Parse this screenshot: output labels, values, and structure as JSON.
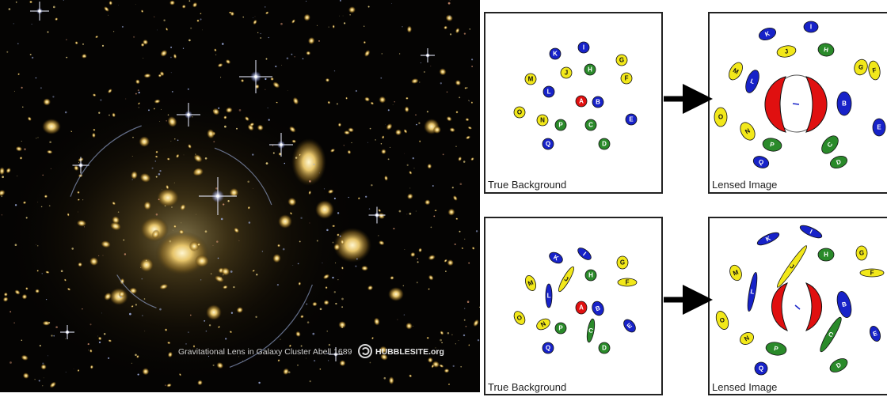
{
  "photo": {
    "caption": "Gravitational Lens in Galaxy Cluster Abell 1689",
    "logo_text": "HUBBLESITE.org",
    "logo_icon": "hubblesite-logo-icon"
  },
  "panels": {
    "top_left_label": "True Background",
    "top_right_label": "Lensed Image",
    "bottom_left_label": "True Background",
    "bottom_right_label": "Lensed Image"
  },
  "colors": {
    "yellow": "#f2e81a",
    "blue": "#1722c8",
    "green": "#2a8a2a",
    "red": "#e01010"
  },
  "sources": [
    {
      "letter": "K",
      "color": "blue"
    },
    {
      "letter": "I",
      "color": "blue"
    },
    {
      "letter": "G",
      "color": "yellow"
    },
    {
      "letter": "M",
      "color": "yellow"
    },
    {
      "letter": "J",
      "color": "yellow"
    },
    {
      "letter": "H",
      "color": "green"
    },
    {
      "letter": "F",
      "color": "yellow"
    },
    {
      "letter": "L",
      "color": "blue"
    },
    {
      "letter": "A",
      "color": "red"
    },
    {
      "letter": "B",
      "color": "blue"
    },
    {
      "letter": "O",
      "color": "yellow"
    },
    {
      "letter": "N",
      "color": "yellow"
    },
    {
      "letter": "P",
      "color": "green"
    },
    {
      "letter": "C",
      "color": "green"
    },
    {
      "letter": "E",
      "color": "blue"
    },
    {
      "letter": "Q",
      "color": "blue"
    },
    {
      "letter": "D",
      "color": "green"
    }
  ]
}
